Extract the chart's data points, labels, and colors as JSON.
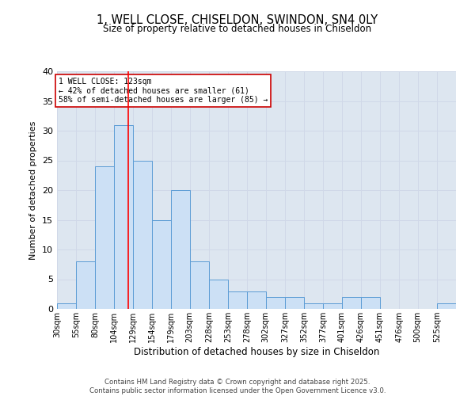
{
  "title": "1, WELL CLOSE, CHISELDON, SWINDON, SN4 0LY",
  "subtitle": "Size of property relative to detached houses in Chiseldon",
  "xlabel": "Distribution of detached houses by size in Chiseldon",
  "ylabel": "Number of detached properties",
  "bin_labels": [
    "30sqm",
    "55sqm",
    "80sqm",
    "104sqm",
    "129sqm",
    "154sqm",
    "179sqm",
    "203sqm",
    "228sqm",
    "253sqm",
    "278sqm",
    "302sqm",
    "327sqm",
    "352sqm",
    "377sqm",
    "401sqm",
    "426sqm",
    "451sqm",
    "476sqm",
    "500sqm",
    "525sqm"
  ],
  "bin_edges": [
    30,
    55,
    80,
    104,
    129,
    154,
    179,
    203,
    228,
    253,
    278,
    302,
    327,
    352,
    377,
    401,
    426,
    451,
    476,
    500,
    525,
    550
  ],
  "values": [
    1,
    8,
    24,
    31,
    25,
    15,
    20,
    8,
    5,
    3,
    3,
    2,
    2,
    1,
    1,
    2,
    2,
    0,
    0,
    0,
    1
  ],
  "bar_color": "#cce0f5",
  "bar_edge_color": "#5b9bd5",
  "red_line_x": 123,
  "annotation_title": "1 WELL CLOSE: 123sqm",
  "annotation_line1": "← 42% of detached houses are smaller (61)",
  "annotation_line2": "58% of semi-detached houses are larger (85) →",
  "annotation_box_color": "#ffffff",
  "annotation_box_edge": "#cc0000",
  "grid_color": "#d0d8e8",
  "background_color": "#dde6f0",
  "ylim": [
    0,
    40
  ],
  "yticks": [
    0,
    5,
    10,
    15,
    20,
    25,
    30,
    35,
    40
  ],
  "footer1": "Contains HM Land Registry data © Crown copyright and database right 2025.",
  "footer2": "Contains public sector information licensed under the Open Government Licence v3.0."
}
